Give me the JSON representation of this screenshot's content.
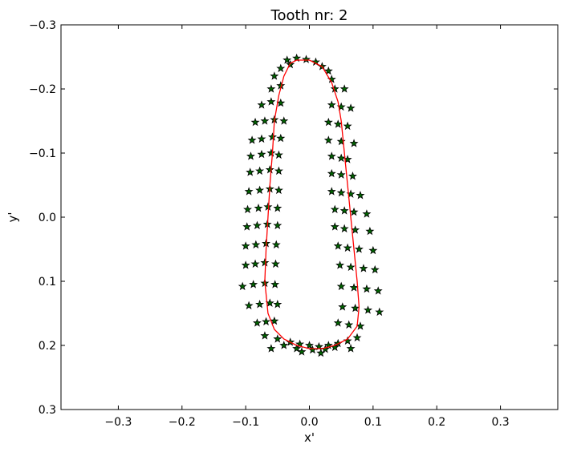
{
  "chart_data": {
    "type": "scatter",
    "title": "Tooth nr: 2",
    "xlabel": "x'",
    "ylabel": "y'",
    "xlim": [
      -0.39,
      0.39
    ],
    "ylim": [
      0.3,
      -0.3
    ],
    "y_inverted": true,
    "x_ticks": [
      -0.3,
      -0.2,
      -0.1,
      0.0,
      0.1,
      0.2,
      0.3
    ],
    "x_tick_labels": [
      "−0.3",
      "−0.2",
      "−0.1",
      "0.0",
      "0.1",
      "0.2",
      "0.3"
    ],
    "y_ticks": [
      -0.3,
      -0.2,
      -0.1,
      0.0,
      0.1,
      0.2,
      0.3
    ],
    "y_tick_labels": [
      "−0.3",
      "−0.2",
      "−0.1",
      "0.0",
      "0.1",
      "0.2",
      "0.3"
    ],
    "grid": false,
    "series": [
      {
        "kind": "markers",
        "marker": "star",
        "color": "#006400",
        "edge_color": "#000000",
        "points": [
          [
            -0.035,
            -0.245
          ],
          [
            -0.02,
            -0.248
          ],
          [
            -0.005,
            -0.246
          ],
          [
            0.01,
            -0.242
          ],
          [
            0.02,
            -0.235
          ],
          [
            -0.045,
            -0.232
          ],
          [
            -0.03,
            -0.238
          ],
          [
            0.03,
            -0.228
          ],
          [
            -0.055,
            -0.22
          ],
          [
            0.035,
            -0.215
          ],
          [
            -0.06,
            -0.2
          ],
          [
            -0.045,
            -0.205
          ],
          [
            0.04,
            -0.2
          ],
          [
            0.055,
            -0.2
          ],
          [
            -0.075,
            -0.175
          ],
          [
            -0.06,
            -0.18
          ],
          [
            -0.045,
            -0.178
          ],
          [
            0.035,
            -0.175
          ],
          [
            0.05,
            -0.172
          ],
          [
            0.065,
            -0.17
          ],
          [
            -0.085,
            -0.148
          ],
          [
            -0.07,
            -0.15
          ],
          [
            -0.055,
            -0.152
          ],
          [
            -0.04,
            -0.15
          ],
          [
            0.03,
            -0.148
          ],
          [
            0.045,
            -0.145
          ],
          [
            0.06,
            -0.142
          ],
          [
            -0.09,
            -0.12
          ],
          [
            -0.075,
            -0.122
          ],
          [
            -0.058,
            -0.125
          ],
          [
            -0.045,
            -0.123
          ],
          [
            0.03,
            -0.12
          ],
          [
            0.05,
            -0.118
          ],
          [
            0.07,
            -0.115
          ],
          [
            -0.092,
            -0.095
          ],
          [
            -0.075,
            -0.098
          ],
          [
            -0.06,
            -0.1
          ],
          [
            -0.048,
            -0.097
          ],
          [
            0.035,
            -0.095
          ],
          [
            0.05,
            -0.092
          ],
          [
            0.06,
            -0.09
          ],
          [
            -0.093,
            -0.07
          ],
          [
            -0.078,
            -0.072
          ],
          [
            -0.062,
            -0.074
          ],
          [
            -0.048,
            -0.072
          ],
          [
            0.035,
            -0.068
          ],
          [
            0.05,
            -0.066
          ],
          [
            0.068,
            -0.064
          ],
          [
            -0.095,
            -0.04
          ],
          [
            -0.078,
            -0.042
          ],
          [
            -0.062,
            -0.044
          ],
          [
            -0.048,
            -0.042
          ],
          [
            0.035,
            -0.04
          ],
          [
            0.05,
            -0.038
          ],
          [
            0.065,
            -0.036
          ],
          [
            0.08,
            -0.034
          ],
          [
            -0.097,
            -0.012
          ],
          [
            -0.08,
            -0.014
          ],
          [
            -0.065,
            -0.016
          ],
          [
            -0.05,
            -0.014
          ],
          [
            0.04,
            -0.012
          ],
          [
            0.055,
            -0.01
          ],
          [
            0.07,
            -0.008
          ],
          [
            0.09,
            -0.005
          ],
          [
            -0.098,
            0.015
          ],
          [
            -0.082,
            0.013
          ],
          [
            -0.066,
            0.011
          ],
          [
            -0.05,
            0.013
          ],
          [
            0.04,
            0.015
          ],
          [
            0.055,
            0.018
          ],
          [
            0.072,
            0.02
          ],
          [
            0.095,
            0.022
          ],
          [
            -0.1,
            0.045
          ],
          [
            -0.084,
            0.043
          ],
          [
            -0.068,
            0.041
          ],
          [
            -0.052,
            0.043
          ],
          [
            0.045,
            0.045
          ],
          [
            0.06,
            0.048
          ],
          [
            0.078,
            0.05
          ],
          [
            0.1,
            0.052
          ],
          [
            -0.1,
            0.075
          ],
          [
            -0.085,
            0.073
          ],
          [
            -0.07,
            0.071
          ],
          [
            -0.053,
            0.073
          ],
          [
            0.048,
            0.075
          ],
          [
            0.065,
            0.078
          ],
          [
            0.085,
            0.08
          ],
          [
            0.103,
            0.082
          ],
          [
            -0.105,
            0.108
          ],
          [
            -0.088,
            0.105
          ],
          [
            -0.07,
            0.103
          ],
          [
            -0.054,
            0.105
          ],
          [
            0.05,
            0.108
          ],
          [
            0.07,
            0.11
          ],
          [
            0.09,
            0.112
          ],
          [
            0.108,
            0.115
          ],
          [
            -0.095,
            0.138
          ],
          [
            -0.078,
            0.136
          ],
          [
            -0.062,
            0.134
          ],
          [
            -0.05,
            0.136
          ],
          [
            0.052,
            0.14
          ],
          [
            0.072,
            0.142
          ],
          [
            0.092,
            0.145
          ],
          [
            0.11,
            0.148
          ],
          [
            -0.082,
            0.165
          ],
          [
            -0.068,
            0.163
          ],
          [
            -0.055,
            0.162
          ],
          [
            0.045,
            0.165
          ],
          [
            0.062,
            0.168
          ],
          [
            0.08,
            0.17
          ],
          [
            -0.07,
            0.185
          ],
          [
            -0.05,
            0.19
          ],
          [
            -0.03,
            0.195
          ],
          [
            -0.015,
            0.198
          ],
          [
            0.0,
            0.2
          ],
          [
            0.015,
            0.202
          ],
          [
            0.03,
            0.2
          ],
          [
            0.045,
            0.197
          ],
          [
            0.06,
            0.193
          ],
          [
            0.075,
            0.188
          ],
          [
            -0.04,
            0.2
          ],
          [
            -0.02,
            0.205
          ],
          [
            0.005,
            0.207
          ],
          [
            0.025,
            0.206
          ],
          [
            0.04,
            0.203
          ],
          [
            -0.06,
            0.205
          ],
          [
            0.065,
            0.205
          ],
          [
            -0.012,
            0.21
          ],
          [
            0.018,
            0.212
          ]
        ]
      },
      {
        "kind": "line",
        "color": "#ff0000",
        "closed": true,
        "points": [
          [
            -0.02,
            -0.245
          ],
          [
            0.0,
            -0.245
          ],
          [
            0.02,
            -0.235
          ],
          [
            0.035,
            -0.21
          ],
          [
            0.045,
            -0.18
          ],
          [
            0.05,
            -0.15
          ],
          [
            0.055,
            -0.1
          ],
          [
            0.06,
            -0.05
          ],
          [
            0.065,
            0.0
          ],
          [
            0.07,
            0.05
          ],
          [
            0.075,
            0.1
          ],
          [
            0.078,
            0.14
          ],
          [
            0.075,
            0.17
          ],
          [
            0.06,
            0.19
          ],
          [
            0.04,
            0.2
          ],
          [
            0.02,
            0.205
          ],
          [
            0.0,
            0.205
          ],
          [
            -0.02,
            0.2
          ],
          [
            -0.04,
            0.19
          ],
          [
            -0.055,
            0.175
          ],
          [
            -0.065,
            0.15
          ],
          [
            -0.07,
            0.1
          ],
          [
            -0.068,
            0.05
          ],
          [
            -0.065,
            0.0
          ],
          [
            -0.062,
            -0.05
          ],
          [
            -0.058,
            -0.1
          ],
          [
            -0.055,
            -0.15
          ],
          [
            -0.048,
            -0.19
          ],
          [
            -0.04,
            -0.22
          ],
          [
            -0.03,
            -0.24
          ]
        ]
      }
    ]
  }
}
